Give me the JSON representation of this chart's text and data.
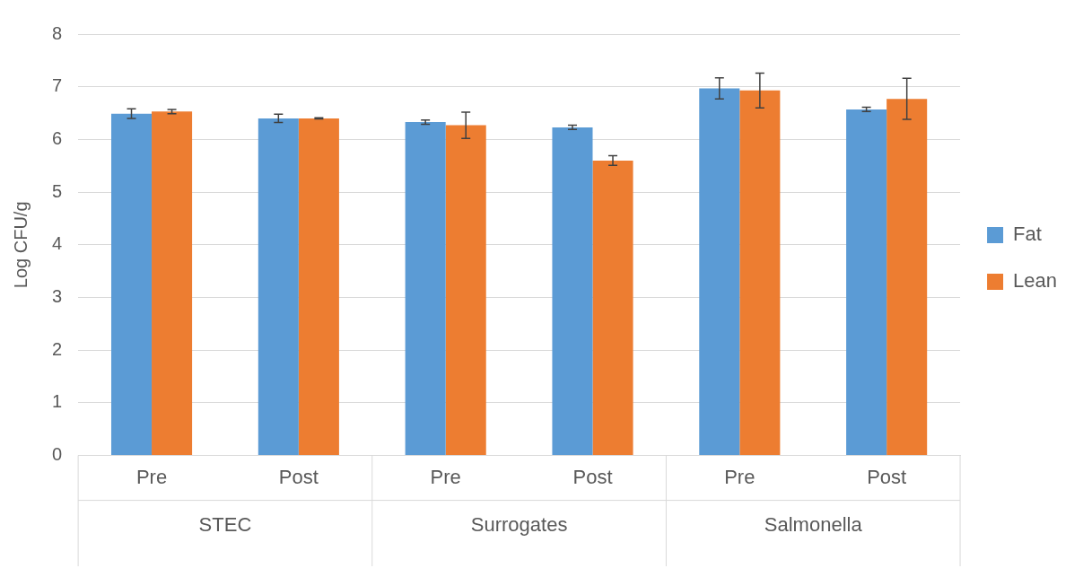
{
  "chart_data": {
    "type": "bar",
    "ylabel": "Log CFU/g",
    "categories": [
      "Pre",
      "Post",
      "Pre",
      "Post",
      "Pre",
      "Post"
    ],
    "annotations": [
      "STEC",
      "Surrogates",
      "Salmonella"
    ],
    "series": [
      {
        "name": "Fat",
        "color": "#5b9bd5",
        "values": [
          6.49,
          6.4,
          6.33,
          6.23,
          6.97,
          6.57
        ],
        "errors": [
          0.09,
          0.08,
          0.04,
          0.04,
          0.2,
          0.04
        ]
      },
      {
        "name": "Lean",
        "color": "#ed7d31",
        "values": [
          6.53,
          6.4,
          6.27,
          5.6,
          6.93,
          6.77
        ],
        "errors": [
          0.04,
          0.01,
          0.25,
          0.09,
          0.33,
          0.39
        ]
      }
    ],
    "ylim": [
      0,
      8
    ],
    "yticks": [
      0,
      1,
      2,
      3,
      4,
      5,
      6,
      7,
      8
    ],
    "grid": "y",
    "legend": "right"
  }
}
